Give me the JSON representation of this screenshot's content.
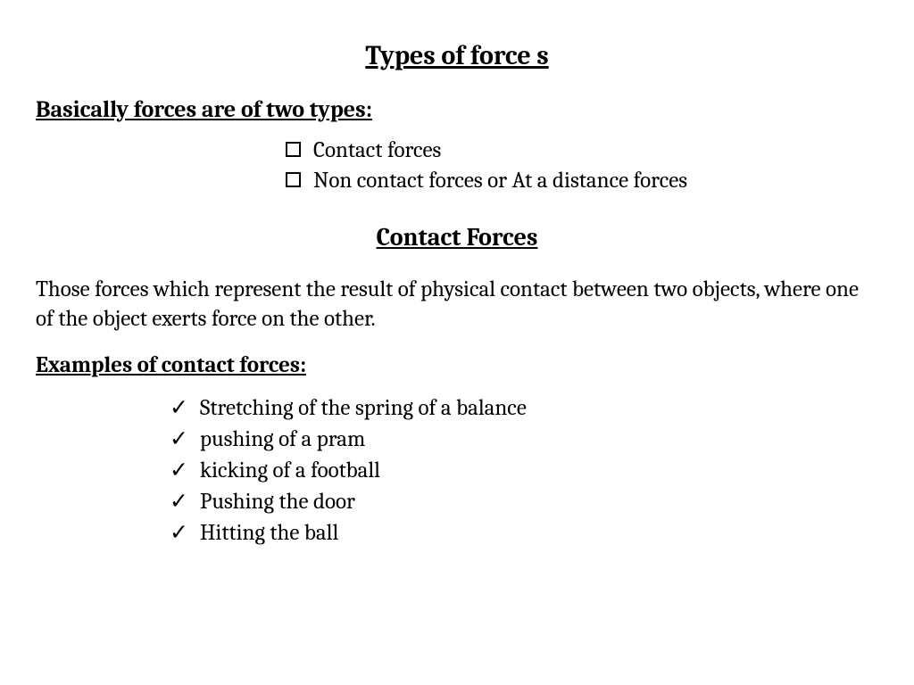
{
  "mainTitle": "Types of force s",
  "subtitle1": "Basically forces are of two types:",
  "typeList": {
    "items": [
      "Contact forces",
      "Non contact forces or At a distance forces"
    ]
  },
  "sectionTitle": "Contact Forces",
  "definition": "Those forces which represent the result of physical contact between two objects, where one of the object exerts force on the other.",
  "examplesHeading": "Examples of contact forces:",
  "exampleList": {
    "items": [
      "Stretching of the spring of a balance",
      "pushing of a pram",
      "kicking of a football",
      "Pushing the door",
      "Hitting the ball"
    ]
  },
  "styling": {
    "background_color": "#ffffff",
    "text_color": "#000000",
    "font_family": "Cambria, Georgia, serif",
    "title_fontsize": 30,
    "subtitle_fontsize": 26,
    "body_fontsize": 25,
    "bullet_marker": "hollow-square",
    "check_marker": "checkmark"
  }
}
